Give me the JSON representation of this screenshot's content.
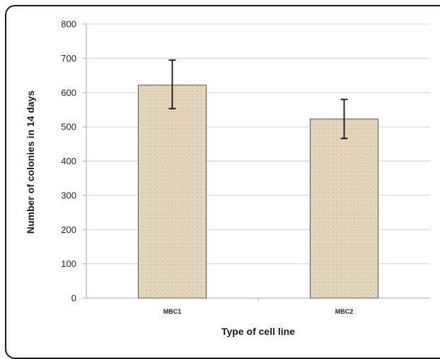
{
  "chart_data": {
    "type": "bar",
    "categories": [
      "MBC1",
      "MBC2"
    ],
    "values": [
      622,
      523
    ],
    "error_bars": [
      [
        553,
        695
      ],
      [
        466,
        580
      ]
    ],
    "xlabel": "Type of cell line",
    "ylabel": "Number of colonies in 14 days",
    "ylim": [
      0,
      800
    ],
    "yticks": [
      "0",
      "100",
      "200",
      "300",
      "400",
      "500",
      "600",
      "700",
      "800"
    ],
    "grid": true,
    "legend": "none",
    "bar_color": "#e8d8bf",
    "bar_texture_color": "#c9b28e"
  }
}
